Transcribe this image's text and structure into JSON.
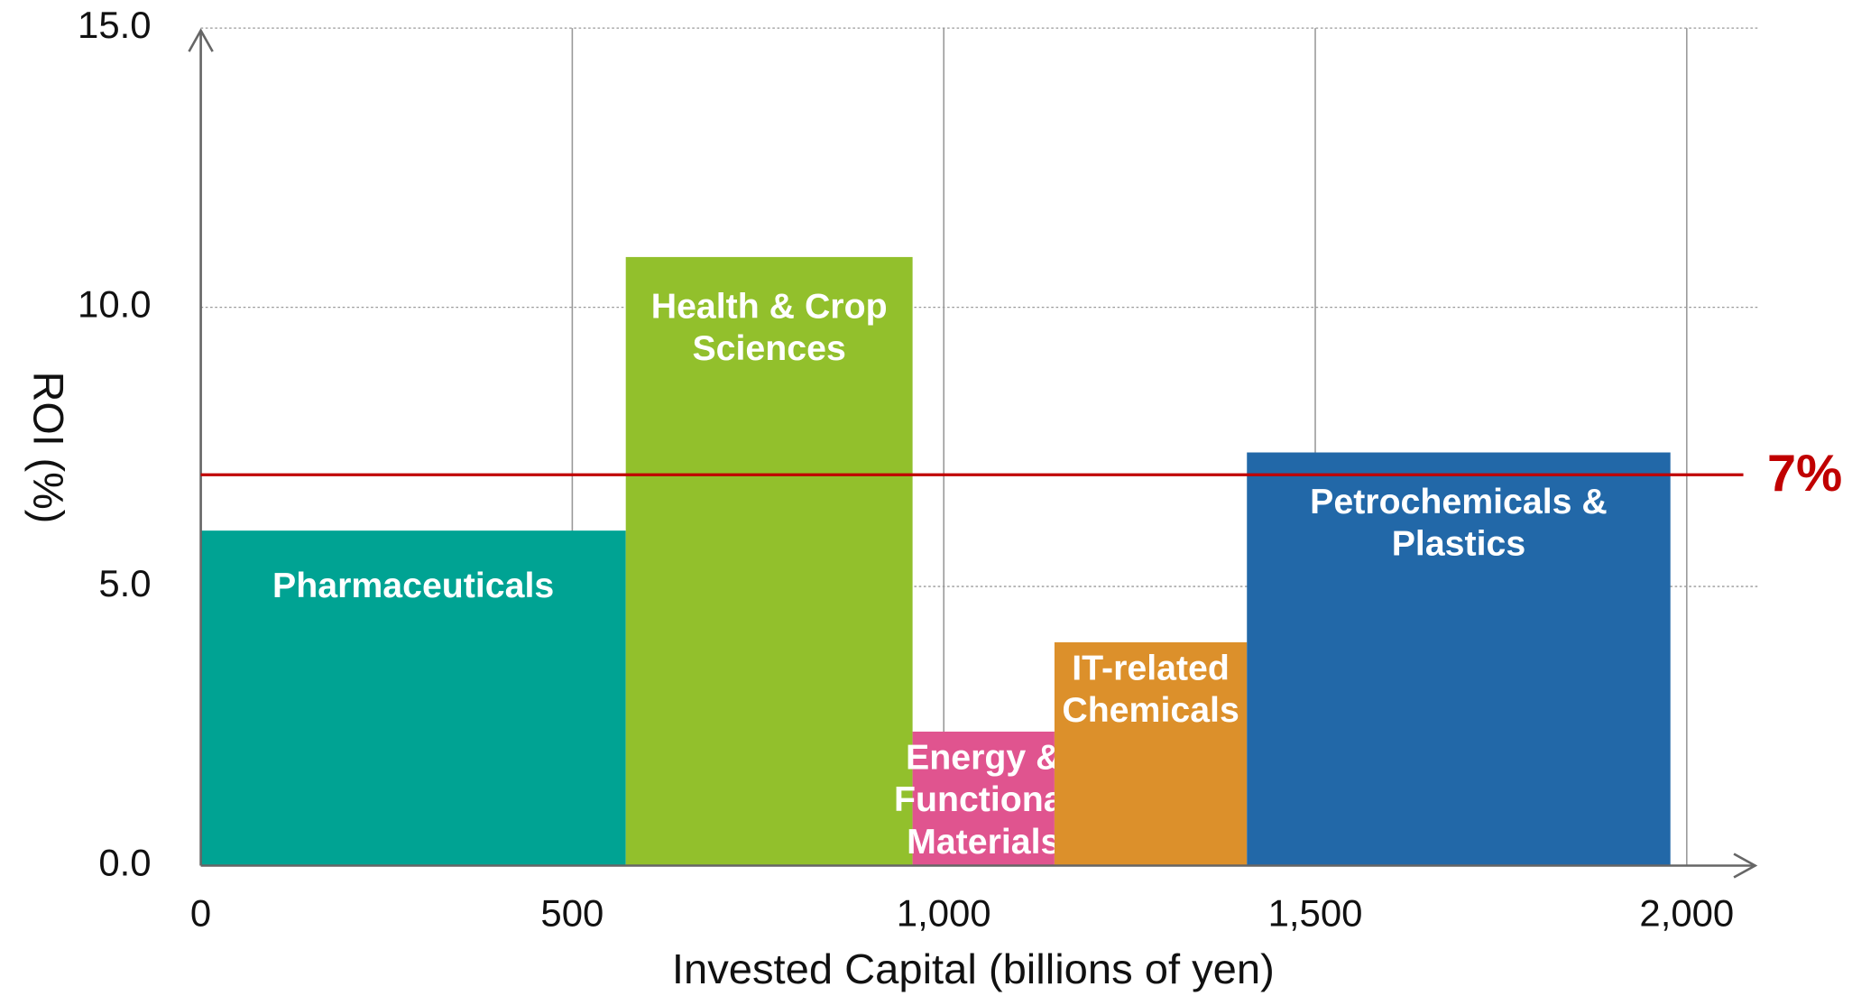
{
  "chart_data": {
    "type": "variwide_bar",
    "x_label": "Invested Capital (billions of yen)",
    "y_label": "ROI (%)",
    "categories": [
      [
        "Pharmaceuticals"
      ],
      [
        "Health & Crop",
        "Sciences"
      ],
      [
        "Energy &",
        "Functional",
        "Materials"
      ],
      [
        "IT-related",
        "Chemicals"
      ],
      [
        "Petrochemicals &",
        "Plastics"
      ]
    ],
    "widths": [
      572,
      386,
      191,
      259,
      570
    ],
    "values": [
      6.0,
      10.9,
      2.4,
      4.0,
      7.4
    ],
    "colors": [
      "#00a393",
      "#92c02c",
      "#e0548f",
      "#dc902b",
      "#2268a8"
    ],
    "xlim": [
      0,
      2100
    ],
    "ylim": [
      0,
      15
    ],
    "xticks": [
      0,
      500,
      {
        "value": 1000,
        "label": "1,000"
      },
      {
        "value": 1500,
        "label": "1,500"
      },
      {
        "value": 2000,
        "label": "2,000"
      }
    ],
    "yticks": [
      {
        "value": 0,
        "label": "0.0"
      },
      {
        "value": 5,
        "label": "5.0"
      },
      {
        "value": 10,
        "label": "10.0"
      },
      {
        "value": 15,
        "label": "15.0"
      }
    ],
    "reference_line": {
      "value": 7,
      "label": "7%",
      "color": "#c00000"
    },
    "grid": true
  }
}
